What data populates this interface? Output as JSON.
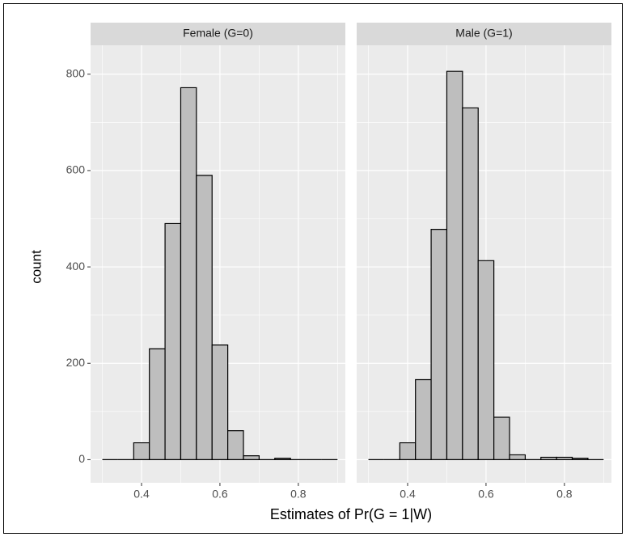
{
  "chart_data": {
    "type": "histogram",
    "xlabel": "Estimates of Pr(G = 1|W)",
    "ylabel": "count",
    "bins": [
      0.3,
      0.34,
      0.38,
      0.42,
      0.46,
      0.5,
      0.54,
      0.58,
      0.62,
      0.66,
      0.7,
      0.74,
      0.78,
      0.82,
      0.86,
      0.9
    ],
    "facets": [
      {
        "title": "Female (G=0)",
        "values": [
          0,
          0,
          35,
          230,
          490,
          772,
          590,
          238,
          60,
          8,
          0,
          3,
          0,
          0,
          0
        ]
      },
      {
        "title": "Male (G=1)",
        "values": [
          0,
          0,
          35,
          166,
          478,
          806,
          730,
          413,
          88,
          10,
          0,
          5,
          5,
          3,
          0
        ]
      }
    ],
    "xlim": [
      0.27,
      0.92
    ],
    "xticks": [
      0.4,
      0.6,
      0.8
    ],
    "xminor": [
      0.3,
      0.5,
      0.7,
      0.9
    ],
    "ylim": [
      -48,
      860
    ],
    "yticks": [
      0,
      200,
      400,
      600,
      800
    ],
    "yminor": [
      100,
      300,
      500,
      700
    ],
    "grid": true,
    "color": "#bebebe",
    "edgecolor": "#000000"
  }
}
